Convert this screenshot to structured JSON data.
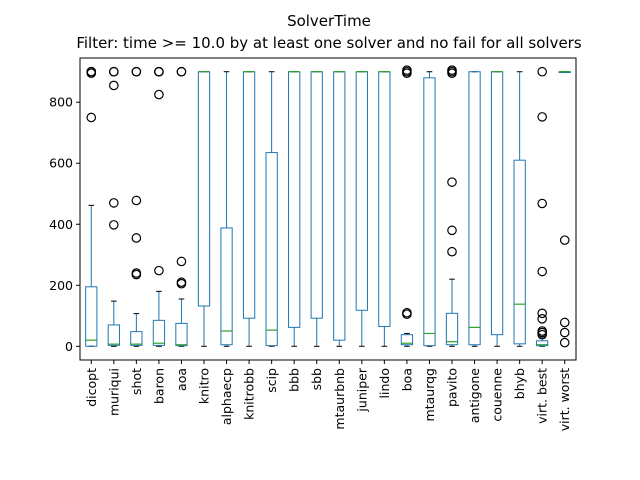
{
  "chart_data": {
    "type": "box",
    "title": "SolverTime",
    "subtitle": "Filter: time >= 10.0 by at least one solver and no fail for all solvers",
    "xlabel": "",
    "ylabel": "",
    "ylim": [
      -45,
      945
    ],
    "yticks": [
      0,
      200,
      400,
      600,
      800
    ],
    "grid": false,
    "colors": {
      "box": "#1f77b4",
      "median": "#2ca02c",
      "flier": "#000000",
      "axes": "#000000"
    },
    "categories": [
      "dicopt",
      "muriqui",
      "shot",
      "baron",
      "aoa",
      "knitro",
      "alphaecp",
      "knitrobb",
      "scip",
      "bbb",
      "sbb",
      "mtaurbnb",
      "juniper",
      "lindo",
      "boa",
      "mtaurqg",
      "pavito",
      "antigone",
      "couenne",
      "bhyb",
      "virt. best",
      "virt. worst"
    ],
    "boxes": [
      {
        "name": "dicopt",
        "whislo": 0,
        "q1": 0,
        "med": 20,
        "q3": 195,
        "whishi": 462,
        "fliers": [
          750,
          895,
          900,
          900,
          900
        ]
      },
      {
        "name": "muriqui",
        "whislo": 0,
        "q1": 3,
        "med": 7,
        "q3": 70,
        "whishi": 148,
        "fliers": [
          398,
          470,
          855,
          900,
          900
        ]
      },
      {
        "name": "shot",
        "whislo": 0,
        "q1": 3,
        "med": 7,
        "q3": 48,
        "whishi": 107,
        "fliers": [
          235,
          240,
          355,
          478,
          900,
          900
        ]
      },
      {
        "name": "baron",
        "whislo": 0,
        "q1": 3,
        "med": 10,
        "q3": 85,
        "whishi": 180,
        "fliers": [
          248,
          825,
          900,
          900,
          900
        ]
      },
      {
        "name": "aoa",
        "whislo": 0,
        "q1": 2,
        "med": 5,
        "q3": 75,
        "whishi": 155,
        "fliers": [
          205,
          210,
          278,
          900,
          900
        ]
      },
      {
        "name": "knitro",
        "whislo": 0,
        "q1": 132,
        "med": 900,
        "q3": 900,
        "whishi": 900,
        "fliers": []
      },
      {
        "name": "alphaecp",
        "whislo": 0,
        "q1": 5,
        "med": 50,
        "q3": 388,
        "whishi": 900,
        "fliers": []
      },
      {
        "name": "knitrobb",
        "whislo": 0,
        "q1": 92,
        "med": 900,
        "q3": 900,
        "whishi": 900,
        "fliers": []
      },
      {
        "name": "scip",
        "whislo": 0,
        "q1": 2,
        "med": 53,
        "q3": 635,
        "whishi": 900,
        "fliers": []
      },
      {
        "name": "bbb",
        "whislo": 0,
        "q1": 62,
        "med": 900,
        "q3": 900,
        "whishi": 900,
        "fliers": []
      },
      {
        "name": "sbb",
        "whislo": 0,
        "q1": 92,
        "med": 900,
        "q3": 900,
        "whishi": 900,
        "fliers": []
      },
      {
        "name": "mtaurbnb",
        "whislo": 0,
        "q1": 20,
        "med": 900,
        "q3": 900,
        "whishi": 900,
        "fliers": []
      },
      {
        "name": "juniper",
        "whislo": 0,
        "q1": 118,
        "med": 900,
        "q3": 900,
        "whishi": 900,
        "fliers": []
      },
      {
        "name": "lindo",
        "whislo": 0,
        "q1": 65,
        "med": 900,
        "q3": 900,
        "whishi": 900,
        "fliers": []
      },
      {
        "name": "boa",
        "whislo": 0,
        "q1": 5,
        "med": 10,
        "q3": 38,
        "whishi": 42,
        "fliers": [
          105,
          110,
          895,
          900,
          905
        ]
      },
      {
        "name": "mtaurqg",
        "whislo": 0,
        "q1": 2,
        "med": 42,
        "q3": 880,
        "whishi": 900,
        "fliers": []
      },
      {
        "name": "pavito",
        "whislo": 0,
        "q1": 5,
        "med": 15,
        "q3": 108,
        "whishi": 220,
        "fliers": [
          310,
          380,
          538,
          895,
          900,
          905
        ]
      },
      {
        "name": "antigone",
        "whislo": 0,
        "q1": 5,
        "med": 62,
        "q3": 900,
        "whishi": 900,
        "fliers": []
      },
      {
        "name": "couenne",
        "whislo": 0,
        "q1": 38,
        "med": 900,
        "q3": 900,
        "whishi": 900,
        "fliers": []
      },
      {
        "name": "bhyb",
        "whislo": 0,
        "q1": 8,
        "med": 138,
        "q3": 610,
        "whishi": 900,
        "fliers": []
      },
      {
        "name": "virt. best",
        "whislo": 0,
        "q1": 2,
        "med": 5,
        "q3": 18,
        "whishi": 30,
        "fliers": [
          38,
          45,
          50,
          90,
          108,
          245,
          468,
          752,
          900
        ]
      },
      {
        "name": "virt. worst",
        "whislo": 900,
        "q1": 900,
        "med": 900,
        "q3": 900,
        "whishi": 900,
        "fliers": [
          12,
          45,
          78,
          348
        ]
      }
    ]
  }
}
